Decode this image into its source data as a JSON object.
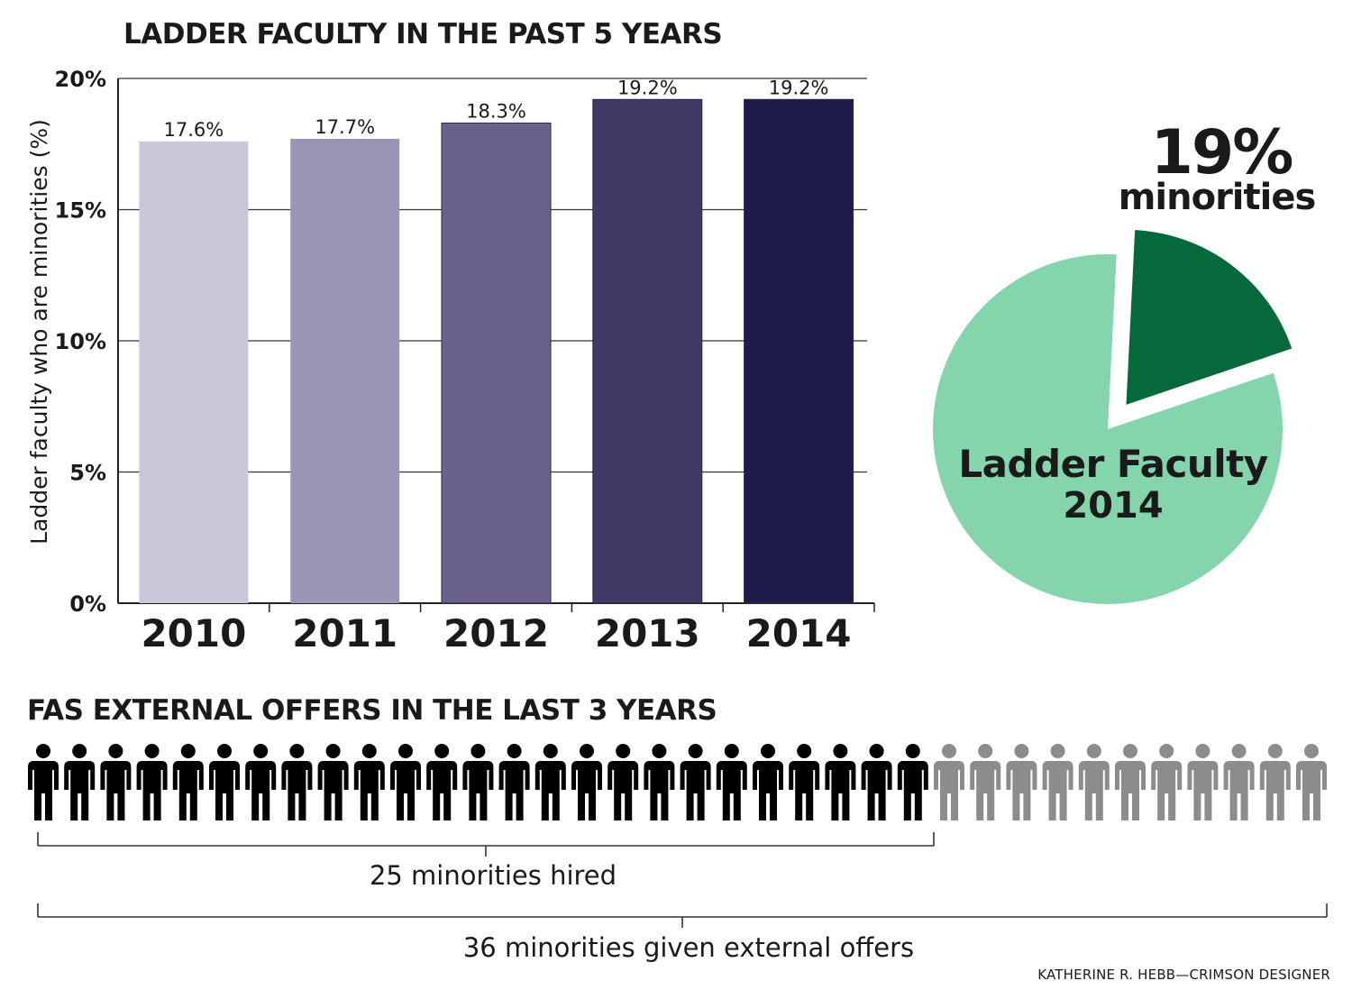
{
  "chart_data": [
    {
      "type": "bar",
      "title": "LADDER FACULTY IN THE PAST 5 YEARS",
      "categories": [
        "2010",
        "2011",
        "2012",
        "2013",
        "2014"
      ],
      "values": [
        17.6,
        17.7,
        18.3,
        19.2,
        19.2
      ],
      "data_labels": [
        "17.6%",
        "17.7%",
        "18.3%",
        "19.2%",
        "19.2%"
      ],
      "bar_colors": [
        "#c8c6d7",
        "#9a97b6",
        "#6a628b",
        "#423a66",
        "#1e1c4b"
      ],
      "ylabel": "Ladder faculty  who are minorities (%)",
      "ylim": [
        0,
        20
      ],
      "yticks": [
        0,
        5,
        10,
        15,
        20
      ],
      "ytick_labels": [
        "0%",
        "5%",
        "10%",
        "15%",
        "20%"
      ],
      "grid": true
    },
    {
      "type": "pie",
      "values": [
        19,
        81
      ],
      "slice_colors": [
        "#05693b",
        "#84d4ac"
      ],
      "exploded": [
        true,
        false
      ],
      "callout_value": "19%",
      "callout_label": "minorities",
      "center_label": "Ladder Faculty",
      "center_sublabel": "2014"
    },
    {
      "type": "pictogram",
      "title": "FAS EXTERNAL OFFERS IN THE LAST 3 YEARS",
      "total": 36,
      "highlighted": 25,
      "highlight_color": "#000000",
      "rest_color": "#8c8c8c",
      "icon": "person-icon",
      "bracket_highlighted_label": "25 minorities hired",
      "bracket_total_label": "36 minorities given external offers"
    }
  ],
  "credit": "KATHERINE R. HEBB—CRIMSON DESIGNER"
}
